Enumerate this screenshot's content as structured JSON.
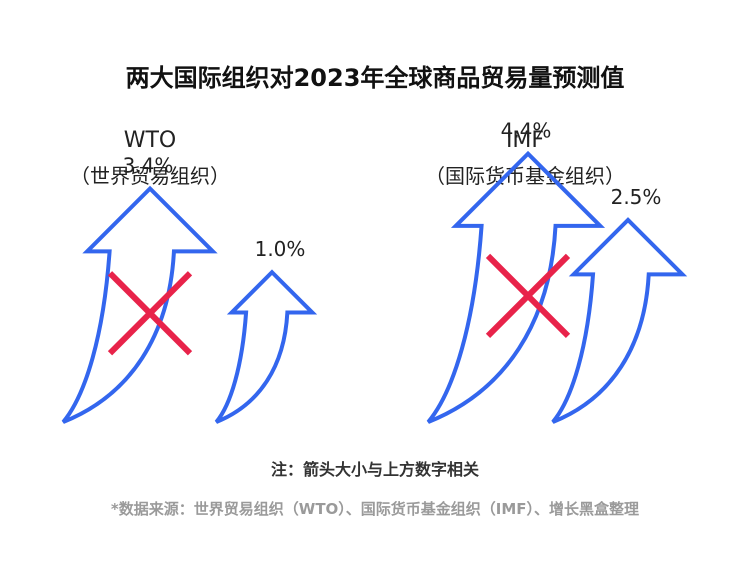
{
  "title": "两大国际组织对2023年全球商品贸易量预测值",
  "note": "注：箭头大小与上方数字相关",
  "source": "*数据来源：世界贸易组织（WTO）、国际货币基金组织（IMF）、增长黑盒整理",
  "colors": {
    "arrow": "#3366ee",
    "cross": "#e8234a",
    "text": "#222222"
  },
  "chart_data": {
    "type": "bar",
    "title": "两大国际组织对2023年全球商品贸易量预测值",
    "groups": [
      {
        "name": "WTO",
        "subtitle": "（世界贸易组织）",
        "forecasts": [
          {
            "label": "3.4%",
            "value": 3.4,
            "crossed_out": true
          },
          {
            "label": "1.0%",
            "value": 1.0,
            "crossed_out": false
          }
        ]
      },
      {
        "name": "IMF",
        "subtitle": "（国际货币基金组织）",
        "forecasts": [
          {
            "label": "4.4%",
            "value": 4.4,
            "crossed_out": true
          },
          {
            "label": "2.5%",
            "value": 2.5,
            "crossed_out": false
          }
        ]
      }
    ],
    "unit": "%"
  }
}
